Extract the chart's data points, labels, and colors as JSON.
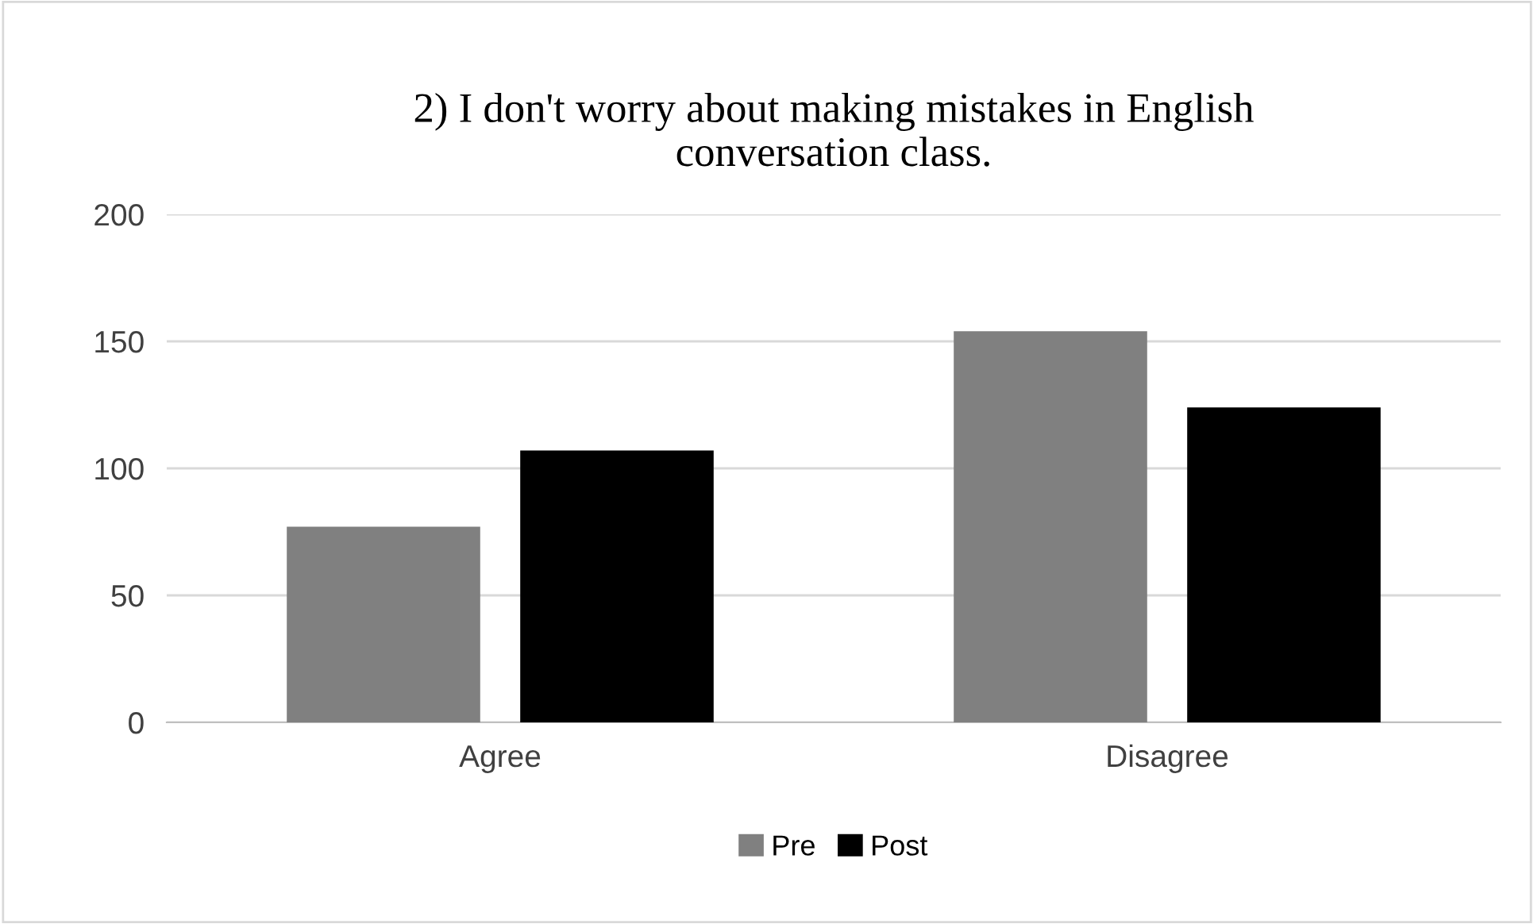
{
  "chart_data": {
    "type": "bar",
    "title": "2) I don't worry about making mistakes in English\nconversation class.",
    "categories": [
      "Agree",
      "Disagree"
    ],
    "series": [
      {
        "name": "Pre",
        "color": "#808080",
        "values": [
          77,
          154
        ]
      },
      {
        "name": "Post",
        "color": "#000000",
        "values": [
          107,
          124
        ]
      }
    ],
    "ylim": [
      0,
      200
    ],
    "yticks": [
      0,
      50,
      100,
      150,
      200
    ],
    "grid": "y",
    "legend": "bottom"
  }
}
